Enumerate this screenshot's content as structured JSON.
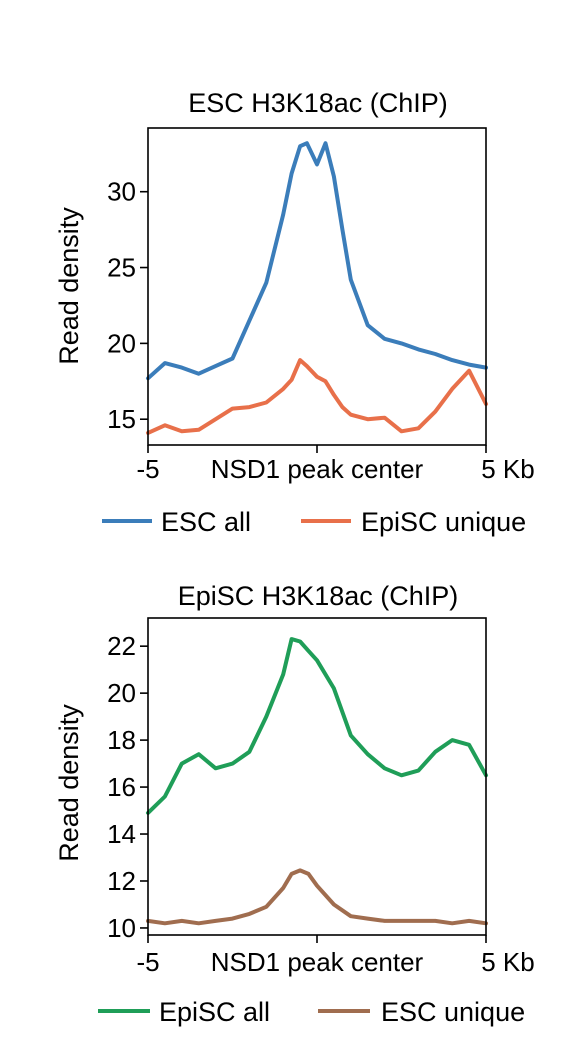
{
  "chart_data": [
    {
      "type": "line",
      "title": "ESC H3K18ac (ChIP)",
      "ylabel": "Read density",
      "xlabel": "NSD1 peak center",
      "xtick_left": "-5",
      "xtick_right": "5 Kb",
      "xlim": [
        -5,
        5
      ],
      "ylim": [
        13.3,
        34.2
      ],
      "yticks": [
        15,
        20,
        25,
        30
      ],
      "x": [
        -5,
        -4.5,
        -4,
        -3.5,
        -3,
        -2.5,
        -2,
        -1.5,
        -1,
        -0.75,
        -0.5,
        -0.3,
        0,
        0.25,
        0.5,
        0.75,
        1,
        1.5,
        2,
        2.5,
        3,
        3.5,
        4,
        4.5,
        5
      ],
      "series": [
        {
          "name": "ESC all",
          "color": "#3b7dba",
          "values": [
            17.7,
            18.7,
            18.4,
            18.0,
            18.5,
            19.0,
            21.5,
            24.0,
            28.5,
            31.2,
            33.0,
            33.2,
            31.8,
            33.2,
            31.0,
            27.5,
            24.2,
            21.2,
            20.3,
            20.0,
            19.6,
            19.3,
            18.9,
            18.6,
            18.4
          ]
        },
        {
          "name": "EpiSC unique",
          "color": "#e8704a",
          "values": [
            14.1,
            14.6,
            14.2,
            14.3,
            15.0,
            15.7,
            15.8,
            16.1,
            17.0,
            17.6,
            18.9,
            18.5,
            17.8,
            17.5,
            16.6,
            15.8,
            15.3,
            15.0,
            15.1,
            14.2,
            14.4,
            15.5,
            17.0,
            18.2,
            16.0
          ]
        }
      ],
      "legend": "bottom"
    },
    {
      "type": "line",
      "title": "EpiSC H3K18ac (ChIP)",
      "ylabel": "Read density",
      "xlabel": "NSD1 peak center",
      "xtick_left": "-5",
      "xtick_right": "5 Kb",
      "xlim": [
        -5,
        5
      ],
      "ylim": [
        9.7,
        23.2
      ],
      "yticks": [
        10,
        12,
        14,
        16,
        18,
        20,
        22
      ],
      "x": [
        -5,
        -4.5,
        -4,
        -3.5,
        -3,
        -2.5,
        -2,
        -1.5,
        -1,
        -0.75,
        -0.5,
        -0.25,
        0,
        0.5,
        1,
        1.5,
        2,
        2.5,
        3,
        3.5,
        4,
        4.5,
        5
      ],
      "series": [
        {
          "name": "EpiSC all",
          "color": "#1f9e58",
          "values": [
            14.9,
            15.6,
            17.0,
            17.4,
            16.8,
            17.0,
            17.5,
            19.0,
            20.8,
            22.3,
            22.2,
            21.8,
            21.4,
            20.2,
            18.2,
            17.4,
            16.8,
            16.5,
            16.7,
            17.5,
            18.0,
            17.8,
            16.5
          ]
        },
        {
          "name": "ESC unique",
          "color": "#a06d4f",
          "values": [
            10.3,
            10.2,
            10.3,
            10.2,
            10.3,
            10.4,
            10.6,
            10.9,
            11.7,
            12.3,
            12.45,
            12.3,
            11.8,
            11.0,
            10.5,
            10.4,
            10.3,
            10.3,
            10.3,
            10.3,
            10.2,
            10.3,
            10.2
          ]
        }
      ],
      "legend": "bottom"
    }
  ]
}
